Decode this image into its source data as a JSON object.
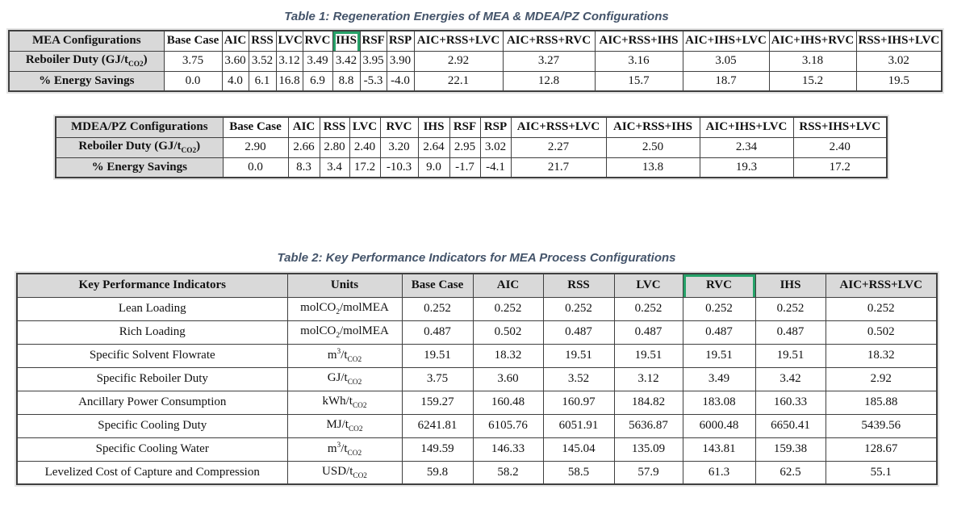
{
  "page": {
    "caption_color": "#44546A",
    "header_fill": "#D9D9D9",
    "highlight_color": "#26A269",
    "border_color": "#3f3f3f"
  },
  "table1": {
    "caption": "Table 1: Regeneration Energies of MEA & MDEA/PZ Configurations",
    "mea": {
      "header": [
        "MEA Configurations",
        "Base Case",
        "AIC",
        "RSS",
        "LVC",
        "RVC",
        "IHS",
        "RSF",
        "RSP",
        "AIC+RSS+LVC",
        "AIC+RSS+RVC",
        "AIC+RSS+IHS",
        "AIC+IHS+LVC",
        "AIC+IHS+RVC",
        "RSS+IHS+LVC"
      ],
      "highlighted_column": "IHS",
      "rows": [
        {
          "label": "Reboiler Duty (GJ/t~CO2~)",
          "values": [
            "3.75",
            "3.60",
            "3.52",
            "3.12",
            "3.49",
            "3.42",
            "3.95",
            "3.90",
            "2.92",
            "3.27",
            "3.16",
            "3.05",
            "3.18",
            "3.02"
          ]
        },
        {
          "label": "% Energy Savings",
          "values": [
            "0.0",
            "4.0",
            "6.1",
            "16.8",
            "6.9",
            "8.8",
            "-5.3",
            "-4.0",
            "22.1",
            "12.8",
            "15.7",
            "18.7",
            "15.2",
            "19.5"
          ]
        }
      ]
    },
    "mdea": {
      "header": [
        "MDEA/PZ Configurations",
        "Base Case",
        "AIC",
        "RSS",
        "LVC",
        "RVC",
        "IHS",
        "RSF",
        "RSP",
        "AIC+RSS+LVC",
        "AIC+RSS+IHS",
        "AIC+IHS+LVC",
        "RSS+IHS+LVC"
      ],
      "rows": [
        {
          "label": "Reboiler Duty (GJ/t~CO2~)",
          "values": [
            "2.90",
            "2.66",
            "2.80",
            "2.40",
            "3.20",
            "2.64",
            "2.95",
            "3.02",
            "2.27",
            "2.50",
            "2.34",
            "2.40"
          ]
        },
        {
          "label": "% Energy Savings",
          "values": [
            "0.0",
            "8.3",
            "3.4",
            "17.2",
            "-10.3",
            "9.0",
            "-1.7",
            "-4.1",
            "21.7",
            "13.8",
            "19.3",
            "17.2"
          ]
        }
      ]
    }
  },
  "table2": {
    "caption": "Table 2: Key Performance Indicators for MEA Process Configurations",
    "header": [
      "Key Performance Indicators",
      "Units",
      "Base Case",
      "AIC",
      "RSS",
      "LVC",
      "RVC",
      "IHS",
      "AIC+RSS+LVC"
    ],
    "highlighted_column": "RVC",
    "rows": [
      {
        "indicator": "Lean Loading",
        "unit": "molCO~2~/molMEA",
        "values": [
          "0.252",
          "0.252",
          "0.252",
          "0.252",
          "0.252",
          "0.252",
          "0.252"
        ]
      },
      {
        "indicator": "Rich Loading",
        "unit": "molCO~2~/molMEA",
        "values": [
          "0.487",
          "0.502",
          "0.487",
          "0.487",
          "0.487",
          "0.487",
          "0.502"
        ]
      },
      {
        "indicator": "Specific Solvent Flowrate",
        "unit": "m^3^/t~CO2~",
        "values": [
          "19.51",
          "18.32",
          "19.51",
          "19.51",
          "19.51",
          "19.51",
          "18.32"
        ]
      },
      {
        "indicator": "Specific Reboiler Duty",
        "unit": "GJ/t~CO2~",
        "values": [
          "3.75",
          "3.60",
          "3.52",
          "3.12",
          "3.49",
          "3.42",
          "2.92"
        ]
      },
      {
        "indicator": "Ancillary Power Consumption",
        "unit": "kWh/t~CO2~",
        "values": [
          "159.27",
          "160.48",
          "160.97",
          "184.82",
          "183.08",
          "160.33",
          "185.88"
        ]
      },
      {
        "indicator": "Specific Cooling Duty",
        "unit": "MJ/t~CO2~",
        "values": [
          "6241.81",
          "6105.76",
          "6051.91",
          "5636.87",
          "6000.48",
          "6650.41",
          "5439.56"
        ]
      },
      {
        "indicator": "Specific Cooling Water",
        "unit": "m^3^/t~CO2~",
        "values": [
          "149.59",
          "146.33",
          "145.04",
          "135.09",
          "143.81",
          "159.38",
          "128.67"
        ]
      },
      {
        "indicator": "Levelized Cost of Capture and Compression",
        "unit": "USD/t~CO2~",
        "values": [
          "59.8",
          "58.2",
          "58.5",
          "57.9",
          "61.3",
          "62.5",
          "55.1"
        ]
      }
    ]
  }
}
